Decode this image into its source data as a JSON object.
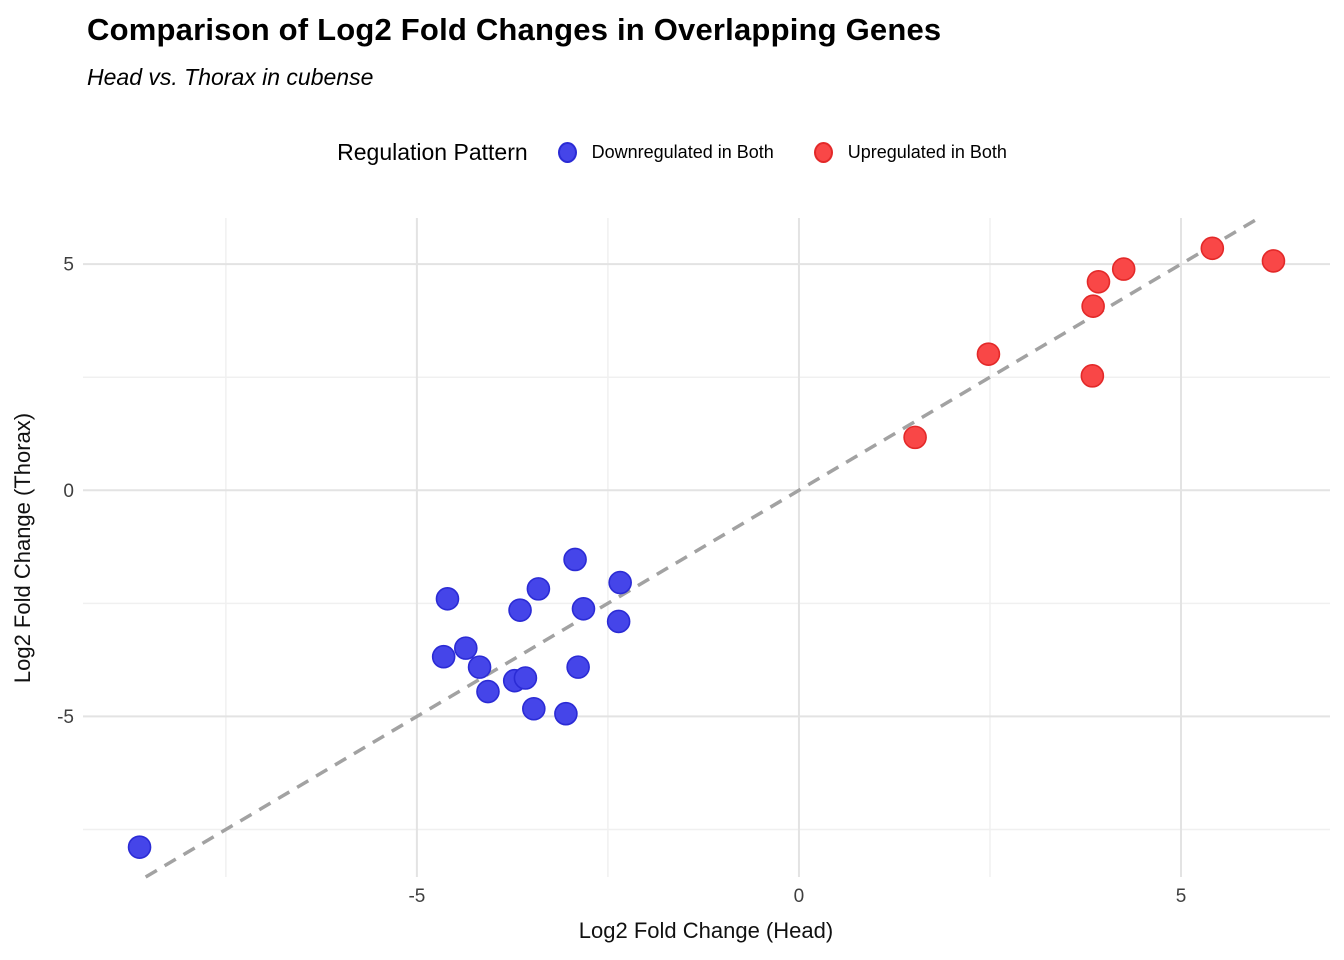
{
  "header": {
    "title": "Comparison of Log2 Fold Changes in Overlapping Genes",
    "subtitle": "Head vs. Thorax in cubense"
  },
  "legend": {
    "title": "Regulation Pattern",
    "items": [
      {
        "label": "Downregulated in Both",
        "color": "#4545E9",
        "border": "#2B2BD5"
      },
      {
        "label": "Upregulated in Both",
        "color": "#F94747",
        "border": "#E32929"
      }
    ]
  },
  "chart_data": {
    "type": "scatter",
    "title": "Comparison of Log2 Fold Changes in Overlapping Genes",
    "subtitle": "Head vs. Thorax in cubense",
    "xlabel": "Log2 Fold Change (Head)",
    "ylabel": "Log2 Fold Change (Thorax)",
    "xlim": [
      -9.37,
      6.95
    ],
    "ylim": [
      -8.55,
      6.02
    ],
    "x_major_ticks": [
      -5,
      0,
      5
    ],
    "x_minor_ticks": [
      -7.5,
      -2.5,
      2.5
    ],
    "y_major_ticks": [
      -5,
      0,
      5
    ],
    "y_minor_ticks": [
      -7.5,
      -2.5,
      2.5
    ],
    "grid": "on",
    "legend_position": "top-center",
    "reference_line": {
      "type": "identity",
      "equation": "y = x",
      "style": "dashed",
      "color": "#A2A2A2"
    },
    "style": {
      "grid_major_color": "#E3E3E3",
      "grid_minor_color": "#F0F0F0",
      "tick_label_color": "#3F3F3F",
      "axis_title_color": "#111111"
    },
    "series": [
      {
        "name": "Downregulated in Both",
        "fill": "#4545E9",
        "stroke": "#2B2BD5",
        "points": [
          [
            -2.93,
            -1.53
          ],
          [
            -3.41,
            -2.18
          ],
          [
            -2.34,
            -2.04
          ],
          [
            -4.6,
            -2.4
          ],
          [
            -3.65,
            -2.65
          ],
          [
            -2.82,
            -2.62
          ],
          [
            -2.36,
            -2.9
          ],
          [
            -4.65,
            -3.68
          ],
          [
            -4.36,
            -3.49
          ],
          [
            -4.18,
            -3.91
          ],
          [
            -3.72,
            -4.21
          ],
          [
            -3.58,
            -4.15
          ],
          [
            -4.07,
            -4.45
          ],
          [
            -2.89,
            -3.91
          ],
          [
            -3.47,
            -4.83
          ],
          [
            -3.05,
            -4.94
          ],
          [
            -8.63,
            -7.89
          ]
        ]
      },
      {
        "name": "Upregulated in Both",
        "fill": "#F94747",
        "stroke": "#E32929",
        "points": [
          [
            1.52,
            1.17
          ],
          [
            2.48,
            3.01
          ],
          [
            3.92,
            4.61
          ],
          [
            3.85,
            4.07
          ],
          [
            3.84,
            2.53
          ],
          [
            4.25,
            4.89
          ],
          [
            5.41,
            5.35
          ],
          [
            6.21,
            5.07
          ]
        ]
      }
    ]
  }
}
